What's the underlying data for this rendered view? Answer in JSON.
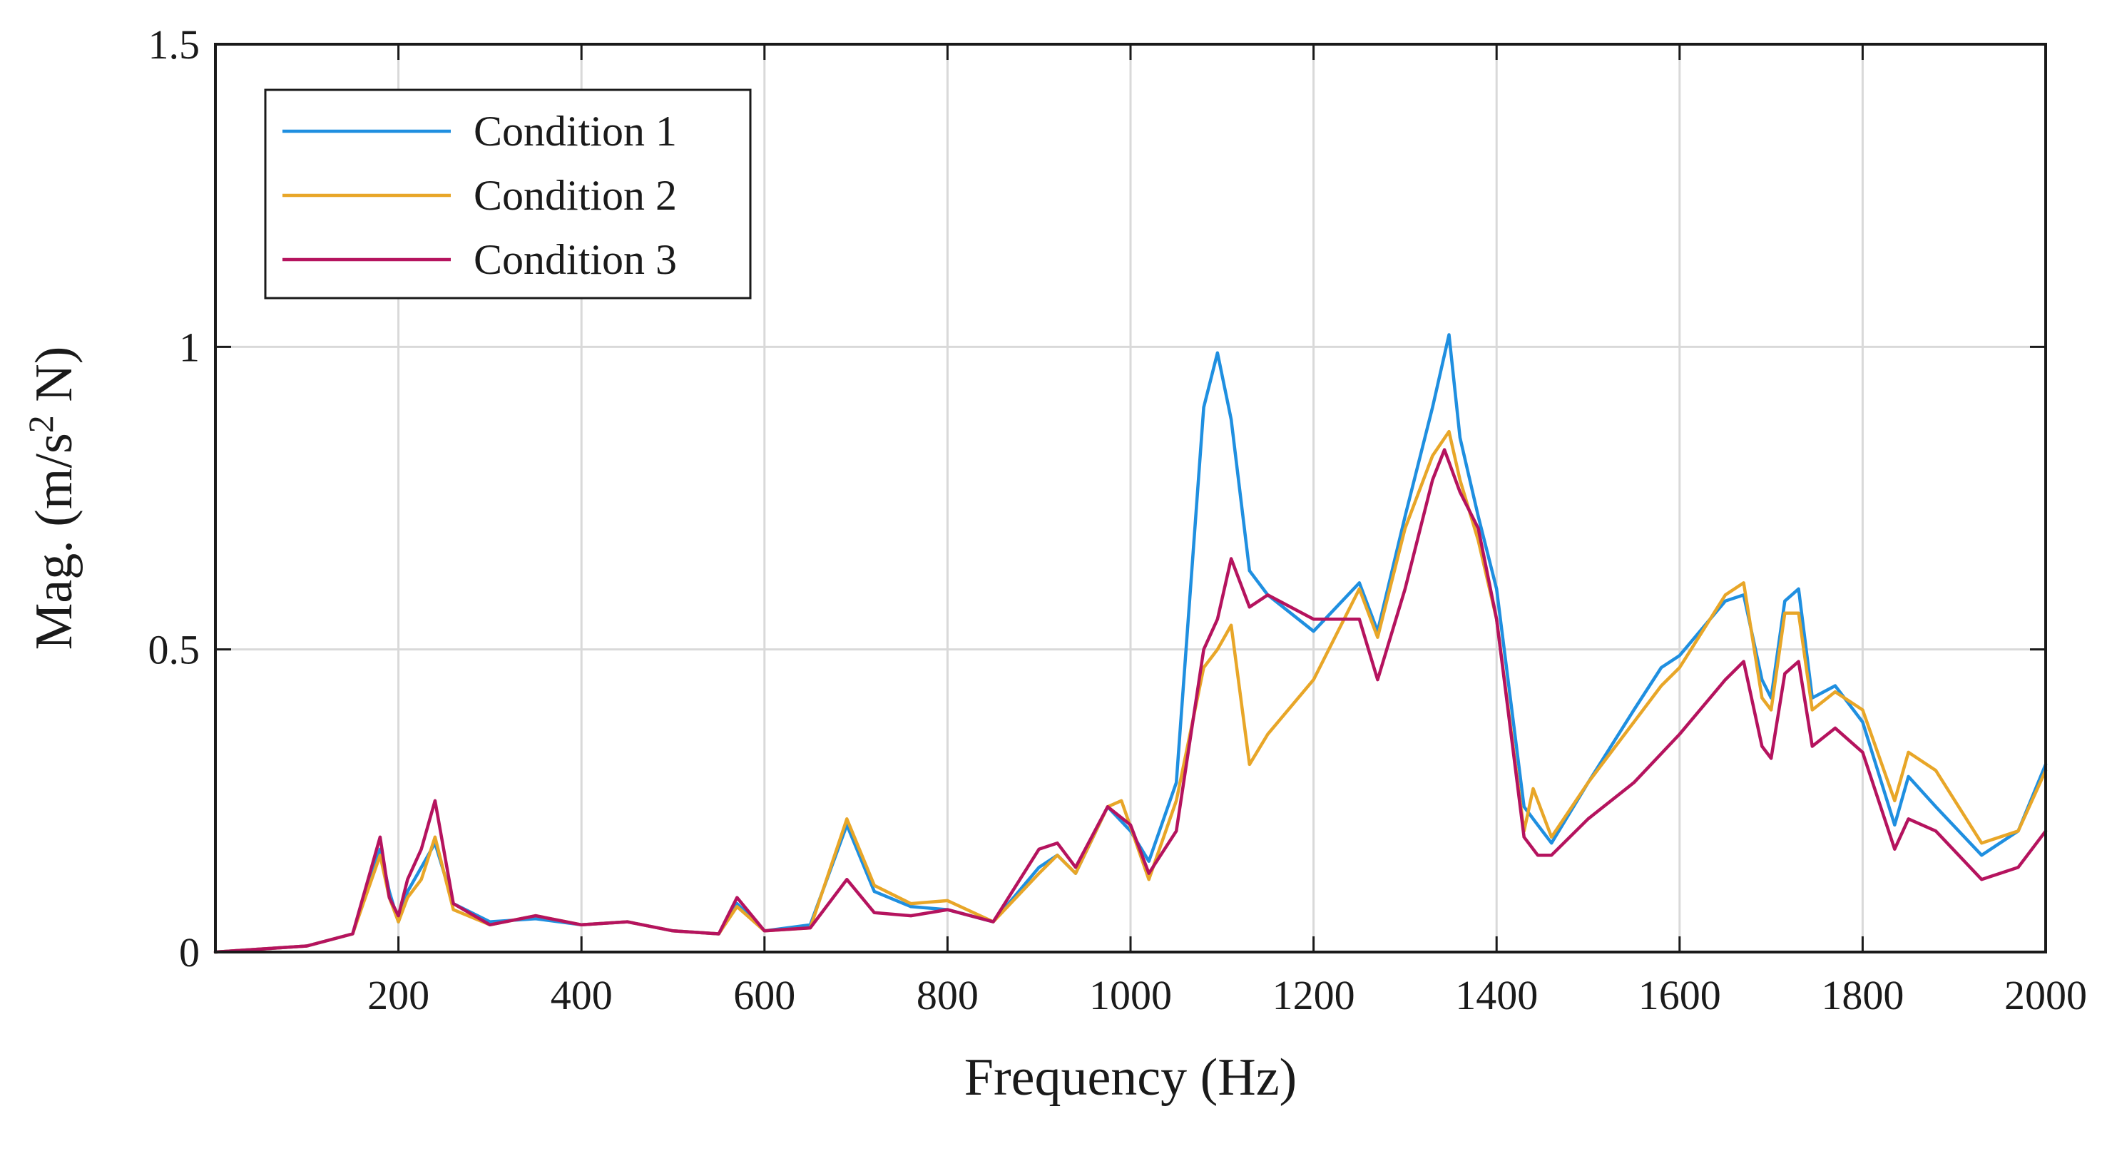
{
  "chart_data": {
    "type": "line",
    "title": "",
    "xlabel": "Frequency (Hz)",
    "ylabel": "Mag. (m/s² N)",
    "ylabel_parts": {
      "main": "Mag. (m/s",
      "sup": "2",
      "tail": " N)"
    },
    "xlim": [
      0,
      2000
    ],
    "ylim": [
      0,
      1.5
    ],
    "xticks": [
      200,
      400,
      600,
      800,
      1000,
      1200,
      1400,
      1600,
      1800,
      2000
    ],
    "xtick_labels": [
      "200",
      "400",
      "600",
      "800",
      "1000",
      "1200",
      "1400",
      "1600",
      "1800",
      "2000"
    ],
    "yticks": [
      0,
      0.5,
      1,
      1.5
    ],
    "ytick_labels": [
      "0",
      "0.5",
      "1",
      "1.5"
    ],
    "grid": true,
    "legend_position": "top-left",
    "series": [
      {
        "name": "Condition 1",
        "color": "#1f8fe0",
        "x": [
          0,
          50,
          100,
          150,
          180,
          190,
          200,
          210,
          225,
          240,
          260,
          300,
          350,
          400,
          450,
          500,
          550,
          570,
          600,
          650,
          690,
          720,
          760,
          800,
          850,
          900,
          920,
          940,
          975,
          1000,
          1020,
          1050,
          1080,
          1095,
          1110,
          1130,
          1150,
          1200,
          1250,
          1270,
          1300,
          1330,
          1348,
          1360,
          1380,
          1400,
          1430,
          1445,
          1460,
          1500,
          1550,
          1580,
          1600,
          1650,
          1670,
          1690,
          1700,
          1715,
          1730,
          1745,
          1770,
          1800,
          1835,
          1850,
          1880,
          1930,
          1970,
          2000
        ],
        "values": [
          0,
          0.005,
          0.01,
          0.03,
          0.17,
          0.1,
          0.05,
          0.1,
          0.14,
          0.18,
          0.08,
          0.05,
          0.055,
          0.045,
          0.05,
          0.035,
          0.03,
          0.08,
          0.035,
          0.045,
          0.21,
          0.1,
          0.075,
          0.07,
          0.05,
          0.14,
          0.16,
          0.13,
          0.24,
          0.2,
          0.15,
          0.28,
          0.9,
          0.99,
          0.88,
          0.63,
          0.59,
          0.53,
          0.61,
          0.53,
          0.72,
          0.9,
          1.02,
          0.85,
          0.72,
          0.6,
          0.24,
          0.21,
          0.18,
          0.28,
          0.4,
          0.47,
          0.49,
          0.58,
          0.59,
          0.45,
          0.42,
          0.58,
          0.6,
          0.42,
          0.44,
          0.38,
          0.21,
          0.29,
          0.24,
          0.16,
          0.2,
          0.31
        ]
      },
      {
        "name": "Condition 2",
        "color": "#e8a628",
        "x": [
          0,
          50,
          100,
          150,
          180,
          190,
          200,
          210,
          225,
          240,
          260,
          300,
          350,
          400,
          450,
          500,
          550,
          570,
          600,
          650,
          690,
          720,
          760,
          800,
          850,
          900,
          920,
          940,
          975,
          990,
          1020,
          1050,
          1080,
          1095,
          1110,
          1130,
          1150,
          1200,
          1250,
          1270,
          1300,
          1330,
          1348,
          1360,
          1380,
          1400,
          1430,
          1440,
          1460,
          1500,
          1550,
          1580,
          1600,
          1650,
          1670,
          1690,
          1700,
          1715,
          1730,
          1745,
          1770,
          1800,
          1835,
          1850,
          1880,
          1930,
          1970,
          2000
        ],
        "values": [
          0,
          0.005,
          0.01,
          0.03,
          0.16,
          0.09,
          0.05,
          0.09,
          0.12,
          0.19,
          0.07,
          0.045,
          0.06,
          0.045,
          0.05,
          0.035,
          0.03,
          0.075,
          0.035,
          0.04,
          0.22,
          0.11,
          0.08,
          0.085,
          0.05,
          0.13,
          0.16,
          0.13,
          0.24,
          0.25,
          0.12,
          0.25,
          0.47,
          0.5,
          0.54,
          0.31,
          0.36,
          0.45,
          0.6,
          0.52,
          0.7,
          0.82,
          0.86,
          0.78,
          0.68,
          0.55,
          0.2,
          0.27,
          0.19,
          0.28,
          0.38,
          0.44,
          0.47,
          0.59,
          0.61,
          0.42,
          0.4,
          0.56,
          0.56,
          0.4,
          0.43,
          0.4,
          0.25,
          0.33,
          0.3,
          0.18,
          0.2,
          0.3
        ]
      },
      {
        "name": "Condition 3",
        "color": "#b5135e",
        "x": [
          0,
          50,
          100,
          150,
          180,
          190,
          200,
          210,
          225,
          240,
          260,
          300,
          350,
          400,
          450,
          500,
          550,
          570,
          600,
          650,
          690,
          720,
          760,
          800,
          850,
          900,
          920,
          940,
          975,
          1000,
          1020,
          1050,
          1080,
          1095,
          1110,
          1130,
          1150,
          1200,
          1250,
          1270,
          1300,
          1330,
          1343,
          1360,
          1380,
          1400,
          1430,
          1445,
          1460,
          1500,
          1550,
          1600,
          1650,
          1670,
          1690,
          1700,
          1715,
          1730,
          1745,
          1770,
          1800,
          1835,
          1850,
          1880,
          1930,
          1970,
          2000
        ],
        "values": [
          0,
          0.005,
          0.01,
          0.03,
          0.19,
          0.09,
          0.06,
          0.12,
          0.17,
          0.25,
          0.08,
          0.045,
          0.06,
          0.045,
          0.05,
          0.035,
          0.03,
          0.09,
          0.035,
          0.04,
          0.12,
          0.065,
          0.06,
          0.07,
          0.05,
          0.17,
          0.18,
          0.14,
          0.24,
          0.21,
          0.13,
          0.2,
          0.5,
          0.55,
          0.65,
          0.57,
          0.59,
          0.55,
          0.55,
          0.45,
          0.6,
          0.78,
          0.83,
          0.76,
          0.7,
          0.55,
          0.19,
          0.16,
          0.16,
          0.22,
          0.28,
          0.36,
          0.45,
          0.48,
          0.34,
          0.32,
          0.46,
          0.48,
          0.34,
          0.37,
          0.33,
          0.17,
          0.22,
          0.2,
          0.12,
          0.14,
          0.2
        ]
      }
    ]
  }
}
